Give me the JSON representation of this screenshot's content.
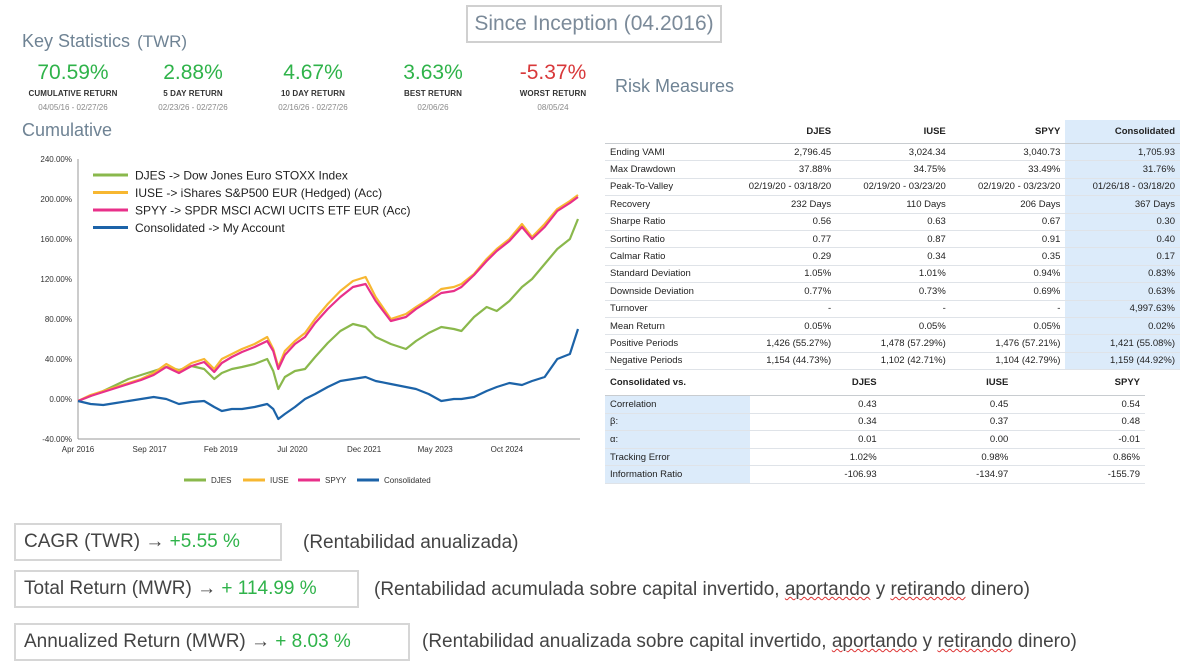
{
  "header": {
    "since_inception": "Since Inception (04.2016)"
  },
  "key_stats": {
    "title": "Key Statistics",
    "subtitle": "(TWR)",
    "items": [
      {
        "value": "70.59%",
        "label": "CUMULATIVE RETURN",
        "dates": "04/05/16 - 02/27/26",
        "color": "#2fb34a"
      },
      {
        "value": "2.88%",
        "label": "5 DAY RETURN",
        "dates": "02/23/26 - 02/27/26",
        "color": "#2fb34a"
      },
      {
        "value": "4.67%",
        "label": "10 DAY RETURN",
        "dates": "02/16/26 - 02/27/26",
        "color": "#2fb34a"
      },
      {
        "value": "3.63%",
        "label": "BEST RETURN",
        "dates": "02/06/26",
        "color": "#2fb34a"
      },
      {
        "value": "-5.37%",
        "label": "WORST RETURN",
        "dates": "08/05/24",
        "color": "#d8383a"
      }
    ]
  },
  "cumulative_title": "Cumulative",
  "risk_title": "Risk Measures",
  "chart_data": {
    "type": "line",
    "title": "Cumulative",
    "x_tick_labels": [
      "Apr 2016",
      "Sep 2017",
      "Feb 2019",
      "Jul 2020",
      "Dec 2021",
      "May 2023",
      "Oct 2024"
    ],
    "y_tick_labels": [
      "240.00%",
      "200.00%",
      "160.00%",
      "120.00%",
      "80.00%",
      "40.00%",
      "0.00%",
      "-40.00%"
    ],
    "ylim": [
      -40,
      240
    ],
    "x": [
      2016.25,
      2016.5,
      2016.75,
      2017.0,
      2017.25,
      2017.5,
      2017.75,
      2018.0,
      2018.25,
      2018.5,
      2018.75,
      2018.95,
      2019.1,
      2019.3,
      2019.5,
      2019.75,
      2020.0,
      2020.12,
      2020.22,
      2020.35,
      2020.55,
      2020.75,
      2020.95,
      2021.2,
      2021.45,
      2021.7,
      2021.95,
      2022.15,
      2022.45,
      2022.75,
      2022.95,
      2023.2,
      2023.45,
      2023.7,
      2023.85,
      2024.1,
      2024.35,
      2024.55,
      2024.8,
      2025.05,
      2025.25,
      2025.5,
      2025.75,
      2026.0,
      2026.16
    ],
    "series": [
      {
        "name": "DJES",
        "color": "#8ab84c",
        "label": "DJES -> Dow Jones Euro STOXX Index",
        "values": [
          -2,
          3,
          8,
          14,
          20,
          24,
          28,
          32,
          29,
          33,
          30,
          20,
          26,
          30,
          32,
          35,
          40,
          28,
          10,
          22,
          28,
          30,
          42,
          56,
          68,
          75,
          72,
          62,
          55,
          50,
          58,
          66,
          72,
          70,
          68,
          82,
          92,
          88,
          98,
          112,
          120,
          135,
          150,
          160,
          180
        ]
      },
      {
        "name": "IUSE",
        "color": "#f7b731",
        "label": "IUSE -> iShares S&P500 EUR (Hedged) (Acc)",
        "values": [
          -2,
          4,
          8,
          12,
          16,
          20,
          26,
          35,
          28,
          36,
          40,
          30,
          40,
          45,
          50,
          55,
          62,
          50,
          32,
          48,
          58,
          66,
          80,
          95,
          108,
          118,
          122,
          102,
          80,
          85,
          92,
          100,
          110,
          112,
          115,
          125,
          140,
          150,
          160,
          175,
          162,
          175,
          190,
          198,
          204
        ]
      },
      {
        "name": "SPYY",
        "color": "#e8308a",
        "label": "SPYY -> SPDR MSCI ACWI UCITS ETF EUR (Acc)",
        "values": [
          -2,
          3,
          7,
          11,
          15,
          19,
          24,
          32,
          26,
          33,
          37,
          27,
          36,
          42,
          47,
          52,
          58,
          48,
          30,
          44,
          55,
          62,
          76,
          90,
          102,
          112,
          115,
          98,
          78,
          82,
          90,
          98,
          106,
          108,
          112,
          124,
          138,
          148,
          158,
          172,
          160,
          172,
          188,
          196,
          202
        ]
      },
      {
        "name": "Consolidated",
        "color": "#1c63a8",
        "label": "Consolidated -> My Account",
        "values": [
          -2,
          -5,
          -6,
          -4,
          -2,
          0,
          2,
          0,
          -5,
          -3,
          -2,
          -8,
          -12,
          -10,
          -10,
          -8,
          -5,
          -10,
          -20,
          -15,
          -8,
          0,
          5,
          12,
          18,
          20,
          22,
          18,
          15,
          12,
          10,
          5,
          -2,
          0,
          0,
          2,
          8,
          12,
          16,
          14,
          18,
          22,
          40,
          45,
          70
        ]
      }
    ],
    "legend_position": "top-left",
    "bottom_legend": [
      "DJES",
      "IUSE",
      "SPYY",
      "Consolidated"
    ]
  },
  "risk_table": {
    "columns": [
      "",
      "DJES",
      "IUSE",
      "SPYY",
      "Consolidated"
    ],
    "rows": [
      [
        "Ending VAMI",
        "2,796.45",
        "3,024.34",
        "3,040.73",
        "1,705.93"
      ],
      [
        "Max Drawdown",
        "37.88%",
        "34.75%",
        "33.49%",
        "31.76%"
      ],
      [
        "Peak-To-Valley",
        "02/19/20 - 03/18/20",
        "02/19/20 - 03/23/20",
        "02/19/20 - 03/23/20",
        "01/26/18 - 03/18/20"
      ],
      [
        "Recovery",
        "232 Days",
        "110 Days",
        "206 Days",
        "367 Days"
      ],
      [
        "Sharpe Ratio",
        "0.56",
        "0.63",
        "0.67",
        "0.30"
      ],
      [
        "Sortino Ratio",
        "0.77",
        "0.87",
        "0.91",
        "0.40"
      ],
      [
        "Calmar Ratio",
        "0.29",
        "0.34",
        "0.35",
        "0.17"
      ],
      [
        "Standard Deviation",
        "1.05%",
        "1.01%",
        "0.94%",
        "0.83%"
      ],
      [
        "Downside Deviation",
        "0.77%",
        "0.73%",
        "0.69%",
        "0.63%"
      ],
      [
        "Turnover",
        "-",
        "-",
        "-",
        "4,997.63%"
      ],
      [
        "Mean Return",
        "0.05%",
        "0.05%",
        "0.05%",
        "0.02%"
      ],
      [
        "Positive Periods",
        "1,426 (55.27%)",
        "1,478 (57.29%)",
        "1,476 (57.21%)",
        "1,421 (55.08%)"
      ],
      [
        "Negative Periods",
        "1,154 (44.73%)",
        "1,102 (42.71%)",
        "1,104 (42.79%)",
        "1,159 (44.92%)"
      ]
    ]
  },
  "corr_table": {
    "columns": [
      "Consolidated vs.",
      "DJES",
      "IUSE",
      "SPYY"
    ],
    "rows": [
      [
        "Correlation",
        "0.43",
        "0.45",
        "0.54"
      ],
      [
        "β:",
        "0.34",
        "0.37",
        "0.48"
      ],
      [
        "α:",
        "0.01",
        "0.00",
        "-0.01"
      ],
      [
        "Tracking Error",
        "1.02%",
        "0.98%",
        "0.86%"
      ],
      [
        "Information Ratio",
        "-106.93",
        "-134.97",
        "-155.79"
      ]
    ]
  },
  "summary": {
    "cagr_label": "CAGR (TWR) → ",
    "cagr_value": "+5.55 %",
    "cagr_note": "(Rentabilidad anualizada)",
    "total_label": "Total Return (MWR) → ",
    "total_value": "+ 114.99 %",
    "total_note_a": "(Rentabilidad acumulada sobre capital invertido, ",
    "total_note_b": "aportando",
    "total_note_c": " y ",
    "total_note_d": "retirando",
    "total_note_e": " dinero)",
    "ann_label": "Annualized Return (MWR) → ",
    "ann_value": "+ 8.03 %",
    "ann_note_a": "(Rentabilidad anualizada sobre capital invertido, ",
    "ann_note_b": "aportando",
    "ann_note_c": " y ",
    "ann_note_d": "retirando",
    "ann_note_e": " dinero)"
  }
}
